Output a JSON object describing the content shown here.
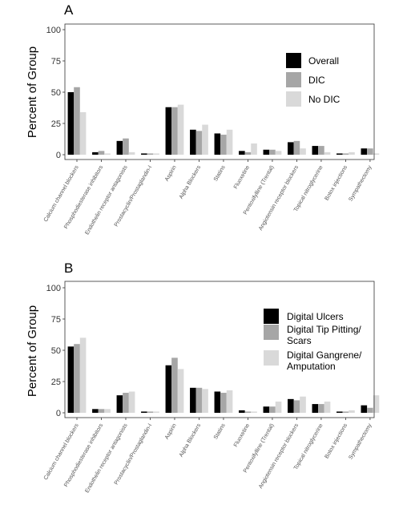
{
  "colors": {
    "series1": "#000000",
    "series2": "#a6a6a6",
    "series3": "#d9d9d9",
    "axis": "#333333",
    "tick_label": "#555555"
  },
  "chart_data": [
    {
      "type": "bar",
      "panel": "A",
      "ylabel": "Percent of Group",
      "ylim": [
        0,
        100
      ],
      "yticks": [
        0,
        25,
        50,
        75,
        100
      ],
      "grid": false,
      "legend_position": "right",
      "categories": [
        "Calcium channel blockers",
        "Phosphodiesterase inhibitors",
        "Endothelin receptor antagonists",
        "Prostacyclin/Prostaglandin-I",
        "Aspirin",
        "Alpha Blockers",
        "Statins",
        "Fluoxetine",
        "Pentoxifylline (Trental)",
        "Angiotensin receptor blockers",
        "Topical nitroglycerine",
        "Botox injections",
        "Sympathectomy"
      ],
      "series": [
        {
          "name": "Overall",
          "values": [
            50,
            2,
            11,
            1,
            38,
            20,
            17,
            3,
            4,
            10,
            7,
            1,
            5
          ]
        },
        {
          "name": "DIC",
          "values": [
            54,
            3,
            13,
            1,
            38,
            19,
            16,
            2,
            4,
            11,
            7,
            1,
            5
          ]
        },
        {
          "name": "No DIC",
          "values": [
            34,
            1,
            2,
            1,
            40,
            24,
            20,
            9,
            3,
            5,
            2,
            2,
            1
          ]
        }
      ]
    },
    {
      "type": "bar",
      "panel": "B",
      "ylabel": "Percent of Group",
      "ylim": [
        0,
        100
      ],
      "yticks": [
        0,
        25,
        50,
        75,
        100
      ],
      "grid": false,
      "legend_position": "right",
      "categories": [
        "Calcium channel blockers",
        "Phosphodiesterase inhibitors",
        "Endothelin receptor antagonists",
        "Prostacyclin/Prostaglandin-I",
        "Aspirin",
        "Alpha Blockers",
        "Statins",
        "Fluoxetine",
        "Pentoxifylline (Trental)",
        "Angiotensin receptor blockers",
        "Topical nitroglycerine",
        "Botox injections",
        "Sympathectomy"
      ],
      "series": [
        {
          "name": "Digital Ulcers",
          "values": [
            53,
            3,
            14,
            1,
            38,
            20,
            17,
            2,
            5,
            11,
            7,
            1,
            6
          ]
        },
        {
          "name": "Digital Tip Pitting/\nScars",
          "values": [
            55,
            3,
            16,
            1,
            44,
            20,
            16,
            1,
            5,
            10,
            7,
            1,
            4
          ]
        },
        {
          "name": "Digital Gangrene/\nAmputation",
          "values": [
            60,
            3,
            17,
            1,
            35,
            19,
            18,
            1,
            9,
            13,
            9,
            2,
            14
          ]
        }
      ]
    }
  ]
}
